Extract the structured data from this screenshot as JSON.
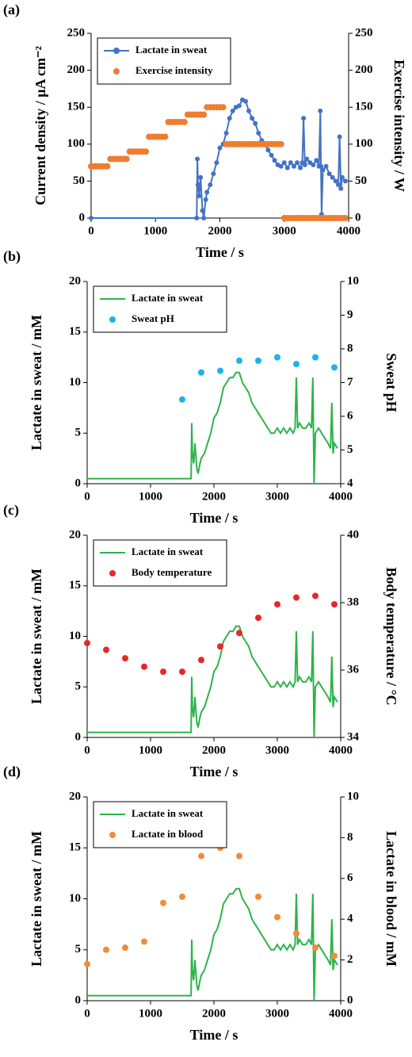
{
  "chart_data": [
    {
      "type": "line",
      "label": "(a)",
      "xlabel": "Time / s",
      "ylabel": "Current density / μA cm⁻²",
      "y2label": "Exercise intensity / W",
      "xlim": [
        0,
        4000
      ],
      "xticks": [
        0,
        1000,
        2000,
        3000,
        4000
      ],
      "ylim": [
        0,
        250
      ],
      "yticks": [
        0,
        50,
        100,
        150,
        200,
        250
      ],
      "y2lim": [
        0,
        250
      ],
      "y2ticks": [
        0,
        50,
        100,
        150,
        200,
        250
      ],
      "series": [
        {
          "name": "Lactate in sweat",
          "color": "#4472c4",
          "style": "line",
          "markers": true,
          "x": [
            0,
            1640,
            1650,
            1660,
            1680,
            1700,
            1730,
            1750,
            1780,
            1800,
            1850,
            1900,
            1950,
            2000,
            2050,
            2100,
            2150,
            2200,
            2250,
            2300,
            2350,
            2400,
            2450,
            2500,
            2550,
            2600,
            2650,
            2700,
            2750,
            2800,
            2850,
            2900,
            2950,
            3000,
            3050,
            3100,
            3150,
            3200,
            3250,
            3280,
            3300,
            3320,
            3350,
            3400,
            3450,
            3500,
            3540,
            3560,
            3570,
            3580,
            3600,
            3650,
            3700,
            3750,
            3800,
            3840,
            3860,
            3880,
            3900,
            3950
          ],
          "values": [
            0,
            0,
            80,
            45,
            30,
            55,
            10,
            0,
            25,
            35,
            45,
            60,
            75,
            95,
            100,
            115,
            135,
            145,
            150,
            152,
            160,
            158,
            145,
            135,
            128,
            115,
            105,
            100,
            92,
            85,
            78,
            72,
            70,
            75,
            68,
            75,
            70,
            75,
            68,
            75,
            135,
            72,
            80,
            75,
            72,
            78,
            70,
            145,
            70,
            5,
            65,
            70,
            60,
            55,
            50,
            45,
            110,
            40,
            55,
            50
          ]
        },
        {
          "name": "Exercise intensity",
          "color": "#ed7d31",
          "style": "points",
          "axis": "y2",
          "x": [
            0,
            50,
            100,
            150,
            200,
            250,
            300,
            350,
            400,
            450,
            500,
            550,
            600,
            650,
            700,
            750,
            800,
            850,
            900,
            950,
            1000,
            1050,
            1100,
            1150,
            1200,
            1250,
            1300,
            1350,
            1400,
            1450,
            1500,
            1550,
            1600,
            1650,
            1700,
            1750,
            1800,
            1850,
            1900,
            1950,
            2000,
            2050,
            2100,
            2150,
            2200,
            2250,
            2300,
            2350,
            2400,
            2450,
            2500,
            2550,
            2600,
            2650,
            2700,
            2750,
            2800,
            2850,
            2900,
            2950,
            3000,
            3050,
            3100,
            3150,
            3200,
            3250,
            3300,
            3350,
            3400,
            3450,
            3500,
            3550,
            3600,
            3650,
            3700,
            3750,
            3800,
            3850,
            3900,
            3950
          ],
          "values": [
            70,
            70,
            70,
            70,
            70,
            70,
            80,
            80,
            80,
            80,
            80,
            80,
            90,
            90,
            90,
            90,
            90,
            90,
            110,
            110,
            110,
            110,
            110,
            110,
            130,
            130,
            130,
            130,
            130,
            130,
            140,
            140,
            140,
            140,
            140,
            140,
            150,
            150,
            150,
            150,
            150,
            150,
            100,
            100,
            100,
            100,
            100,
            100,
            100,
            100,
            100,
            100,
            100,
            100,
            100,
            100,
            100,
            100,
            100,
            100,
            0,
            0,
            0,
            0,
            0,
            0,
            0,
            0,
            0,
            0,
            0,
            0,
            0,
            0,
            0,
            0,
            0,
            0,
            0,
            0
          ]
        }
      ]
    },
    {
      "type": "line",
      "label": "(b)",
      "xlabel": "Time / s",
      "ylabel": "Lactate in sweat / mM",
      "y2label": "Sweat pH",
      "xlim": [
        0,
        4000
      ],
      "xticks": [
        0,
        1000,
        2000,
        3000,
        4000
      ],
      "ylim": [
        0,
        20
      ],
      "yticks": [
        0,
        5,
        10,
        15,
        20
      ],
      "y2lim": [
        4,
        10
      ],
      "y2ticks": [
        4,
        5,
        6,
        7,
        8,
        9,
        10
      ],
      "series": [
        {
          "name": "Lactate in sweat",
          "color": "#2db34a",
          "style": "line",
          "x": [
            0,
            1640,
            1650,
            1660,
            1680,
            1700,
            1730,
            1750,
            1780,
            1800,
            1850,
            1900,
            1950,
            2000,
            2050,
            2100,
            2150,
            2200,
            2250,
            2300,
            2350,
            2400,
            2450,
            2500,
            2550,
            2600,
            2650,
            2700,
            2750,
            2800,
            2850,
            2900,
            2950,
            3000,
            3050,
            3100,
            3150,
            3200,
            3250,
            3280,
            3300,
            3320,
            3350,
            3400,
            3450,
            3500,
            3540,
            3560,
            3570,
            3580,
            3600,
            3650,
            3700,
            3750,
            3800,
            3840,
            3860,
            3880,
            3900,
            3950
          ],
          "values": [
            0.5,
            0.5,
            6,
            3,
            2,
            4,
            1.5,
            1,
            2,
            2.5,
            3,
            4,
            5,
            6.5,
            7,
            8,
            9.5,
            10,
            10.5,
            10.5,
            11,
            11,
            10,
            9.5,
            9,
            8,
            7.5,
            7,
            6.5,
            6,
            5.5,
            5,
            5,
            5.5,
            5,
            5.5,
            5,
            5.5,
            5,
            5.5,
            10.5,
            5.5,
            6,
            5.5,
            5.5,
            6,
            5.5,
            10.5,
            5.5,
            0,
            5,
            5.5,
            5,
            4.5,
            4,
            3.5,
            8,
            3,
            4,
            3.5
          ]
        },
        {
          "name": "Sweat pH",
          "color": "#1ab2f0",
          "style": "points",
          "axis": "y2",
          "x": [
            1500,
            1800,
            2100,
            2400,
            2700,
            3000,
            3300,
            3600,
            3900
          ],
          "values": [
            6.5,
            7.3,
            7.35,
            7.65,
            7.65,
            7.75,
            7.55,
            7.75,
            7.45
          ]
        }
      ]
    },
    {
      "type": "line",
      "label": "(c)",
      "xlabel": "Time / s",
      "ylabel": "Lactate in sweat / mM",
      "y2label": "Body temperature / °C",
      "xlim": [
        0,
        4000
      ],
      "xticks": [
        0,
        1000,
        2000,
        3000,
        4000
      ],
      "ylim": [
        0,
        20
      ],
      "yticks": [
        0,
        5,
        10,
        15,
        20
      ],
      "y2lim": [
        34,
        40
      ],
      "y2ticks": [
        34,
        36,
        38,
        40
      ],
      "series": [
        {
          "name": "Lactate in sweat",
          "color": "#2db34a",
          "style": "line",
          "x": [
            0,
            1640,
            1650,
            1660,
            1680,
            1700,
            1730,
            1750,
            1780,
            1800,
            1850,
            1900,
            1950,
            2000,
            2050,
            2100,
            2150,
            2200,
            2250,
            2300,
            2350,
            2400,
            2450,
            2500,
            2550,
            2600,
            2650,
            2700,
            2750,
            2800,
            2850,
            2900,
            2950,
            3000,
            3050,
            3100,
            3150,
            3200,
            3250,
            3280,
            3300,
            3320,
            3350,
            3400,
            3450,
            3500,
            3540,
            3560,
            3570,
            3580,
            3600,
            3650,
            3700,
            3750,
            3800,
            3840,
            3860,
            3880,
            3900,
            3950
          ],
          "values": [
            0.5,
            0.5,
            6,
            3,
            2,
            4,
            1.5,
            1,
            2,
            2.5,
            3,
            4,
            5,
            6.5,
            7,
            8,
            9.5,
            10,
            10.5,
            10.5,
            11,
            11,
            10,
            9.5,
            9,
            8,
            7.5,
            7,
            6.5,
            6,
            5.5,
            5,
            5,
            5.5,
            5,
            5.5,
            5,
            5.5,
            5,
            5.5,
            10.5,
            5.5,
            6,
            5.5,
            5.5,
            6,
            5.5,
            10.5,
            5.5,
            0,
            5,
            5.5,
            5,
            4.5,
            4,
            3.5,
            8,
            3,
            4,
            3.5
          ]
        },
        {
          "name": "Body temperature",
          "color": "#e8262a",
          "style": "points",
          "axis": "y2",
          "x": [
            0,
            300,
            600,
            900,
            1200,
            1500,
            1800,
            2100,
            2400,
            2700,
            3000,
            3300,
            3600,
            3900
          ],
          "values": [
            36.8,
            36.6,
            36.35,
            36.1,
            35.95,
            35.95,
            36.3,
            36.7,
            37.1,
            37.55,
            37.95,
            38.15,
            38.2,
            37.95
          ]
        }
      ]
    },
    {
      "type": "line",
      "label": "(d)",
      "xlabel": "Time / s",
      "ylabel": "Lactate in sweat / mM",
      "y2label": "Lactate in blood / mM",
      "xlim": [
        0,
        4000
      ],
      "xticks": [
        0,
        1000,
        2000,
        3000,
        4000
      ],
      "ylim": [
        0,
        20
      ],
      "yticks": [
        0,
        5,
        10,
        15,
        20
      ],
      "y2lim": [
        0,
        10
      ],
      "y2ticks": [
        0,
        2,
        4,
        6,
        8,
        10
      ],
      "series": [
        {
          "name": "Lactate in sweat",
          "color": "#2db34a",
          "style": "line",
          "x": [
            0,
            1640,
            1650,
            1660,
            1680,
            1700,
            1730,
            1750,
            1780,
            1800,
            1850,
            1900,
            1950,
            2000,
            2050,
            2100,
            2150,
            2200,
            2250,
            2300,
            2350,
            2400,
            2450,
            2500,
            2550,
            2600,
            2650,
            2700,
            2750,
            2800,
            2850,
            2900,
            2950,
            3000,
            3050,
            3100,
            3150,
            3200,
            3250,
            3280,
            3300,
            3320,
            3350,
            3400,
            3450,
            3500,
            3540,
            3560,
            3570,
            3580,
            3600,
            3650,
            3700,
            3750,
            3800,
            3840,
            3860,
            3880,
            3900,
            3950
          ],
          "values": [
            0.5,
            0.5,
            6,
            3,
            2,
            4,
            1.5,
            1,
            2,
            2.5,
            3,
            4,
            5,
            6.5,
            7,
            8,
            9.5,
            10,
            10.5,
            10.5,
            11,
            11,
            10,
            9.5,
            9,
            8,
            7.5,
            7,
            6.5,
            6,
            5.5,
            5,
            5,
            5.5,
            5,
            5.5,
            5,
            5.5,
            5,
            5.5,
            10.5,
            5.5,
            6,
            5.5,
            5.5,
            6,
            5.5,
            10.5,
            5.5,
            0,
            5,
            5.5,
            5,
            4.5,
            4,
            3.5,
            8,
            3,
            4,
            3.5
          ]
        },
        {
          "name": "Lactate in blood",
          "color": "#f08c3a",
          "style": "points",
          "axis": "y2",
          "x": [
            0,
            300,
            600,
            900,
            1200,
            1500,
            1800,
            2100,
            2400,
            2700,
            3000,
            3300,
            3600,
            3900
          ],
          "values": [
            1.8,
            2.5,
            2.6,
            2.9,
            4.8,
            5.1,
            7.1,
            7.5,
            7.1,
            5.1,
            4.1,
            3.3,
            2.6,
            2.2
          ]
        }
      ]
    }
  ]
}
